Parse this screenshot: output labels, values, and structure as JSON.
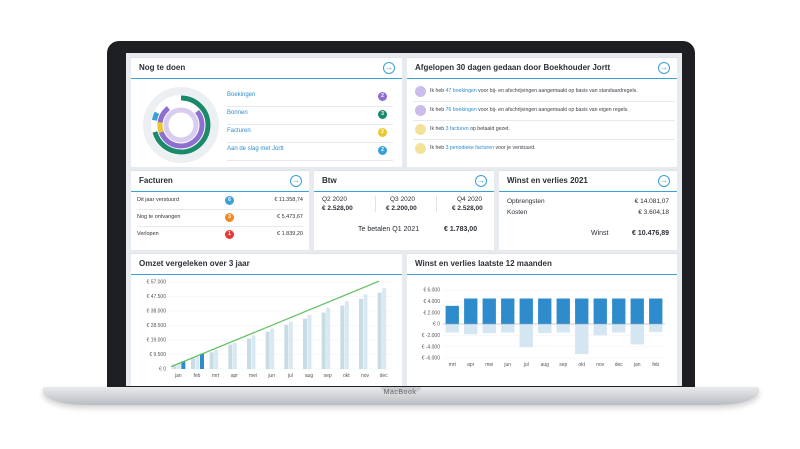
{
  "device": {
    "brand": "MacBook"
  },
  "todo": {
    "title": "Nog te doen",
    "items": [
      {
        "label": "Boekingen",
        "count": "2",
        "color": "#8c6fd1"
      },
      {
        "label": "Bonnen",
        "count": "3",
        "color": "#1b8a6b"
      },
      {
        "label": "Facturen",
        "count": "2",
        "color": "#e8c931"
      },
      {
        "label": "Aan de slag met Jortt",
        "count": "2",
        "color": "#3aa0d8"
      }
    ]
  },
  "activity": {
    "title": "Afgelopen 30 dagen gedaan door Boekhouder Jortt",
    "items": [
      {
        "pre": "Ik heb ",
        "link": "47 boekingen",
        "post": " voor bij- en afschrijvingen aangemaakt op basis van standaardregels.",
        "icon_color": "#8c6fd1"
      },
      {
        "pre": "Ik heb ",
        "link": "76 boekingen",
        "post": " voor bij- en afschrijvingen aangemaakt op basis van eigen regels.",
        "icon_color": "#8c6fd1"
      },
      {
        "pre": "Ik heb ",
        "link": "3 facturen",
        "post": " op betaald gezet.",
        "icon_color": "#e8c931"
      },
      {
        "pre": "Ik heb ",
        "link": "3 periodieke facturen",
        "post": " voor je verstuurd.",
        "icon_color": "#e8c931"
      }
    ]
  },
  "facturen": {
    "title": "Facturen",
    "rows": [
      {
        "label": "Dit jaar verstuurd",
        "badge": "6",
        "color": "#3aa0d8",
        "value": "€ 11.358,74"
      },
      {
        "label": "Nog te ontvangen",
        "badge": "3",
        "color": "#f08a24",
        "value": "€ 5.473,67"
      },
      {
        "label": "Verlopen",
        "badge": "1",
        "color": "#e53935",
        "value": "€ 1.839,20"
      }
    ]
  },
  "btw": {
    "title": "Btw",
    "quarters": [
      {
        "label": "Q2 2020",
        "value": "€ 2.528,00"
      },
      {
        "label": "Q3 2020",
        "value": "€ 2.200,00"
      },
      {
        "label": "Q4 2020",
        "value": "€ 2.528,00"
      }
    ],
    "due_label": "Te betalen Q1 2021",
    "due_value": "€ 1.783,00"
  },
  "winst": {
    "title": "Winst en verlies 2021",
    "opbrengsten_label": "Opbrengsten",
    "opbrengsten_value": "€ 14.081,07",
    "kosten_label": "Kosten",
    "kosten_value": "€ 3.604,18",
    "winst_label": "Winst",
    "winst_value": "€ 10.476,89"
  },
  "chart_data": [
    {
      "type": "bar",
      "title": "Omzet vergeleken over 3 jaar",
      "categories": [
        "jan",
        "feb",
        "mrt",
        "apr",
        "mei",
        "jun",
        "jul",
        "aug",
        "sep",
        "okt",
        "nov",
        "dec"
      ],
      "y_ticks": [
        "€ 0",
        "€ 9.500",
        "€ 19.000",
        "€ 28.500",
        "€ 38.000",
        "€ 47.500",
        "€ 57.000"
      ],
      "ylim": [
        0,
        57000
      ],
      "series": [
        {
          "values": [
            3000,
            7000,
            11000,
            16000,
            20000,
            24500,
            29000,
            33000,
            37000,
            41500,
            46000,
            50000
          ],
          "color": "#c8dce6"
        },
        {
          "values": [
            4000,
            8000,
            12500,
            17000,
            22000,
            26500,
            31000,
            35500,
            40000,
            44500,
            49000,
            53000
          ],
          "color": "#d9e9f1"
        },
        {
          "values": [
            5000,
            10000,
            null,
            null,
            null,
            null,
            null,
            null,
            null,
            null,
            null,
            null
          ],
          "color": "#2f8ccc"
        }
      ],
      "trend": {
        "from": 1500,
        "to": 57500,
        "color": "#5fbf5f"
      }
    },
    {
      "type": "bar",
      "title": "Winst en verlies laatste 12 maanden",
      "categories": [
        "mrt",
        "apr",
        "mei",
        "jun",
        "jul",
        "aug",
        "sep",
        "okt",
        "nov",
        "dec",
        "jan",
        "feb"
      ],
      "y_ticks": [
        "€ -6.000",
        "€ -4.000",
        "€ -2.000",
        "€ 0",
        "€ 2.000",
        "€ 4.000",
        "€ 6.000"
      ],
      "ylim": [
        -6000,
        6000
      ],
      "series": [
        {
          "values": [
            3200,
            4500,
            4500,
            4500,
            4500,
            4500,
            4500,
            4500,
            4500,
            4500,
            4500,
            4500
          ],
          "color": "#2f8ccc"
        },
        {
          "values": [
            -1500,
            -1800,
            -1600,
            -1500,
            -4100,
            -1600,
            -1500,
            -5300,
            -2000,
            -1500,
            -3600,
            -1400
          ],
          "color": "#d3e6f2"
        }
      ]
    }
  ]
}
